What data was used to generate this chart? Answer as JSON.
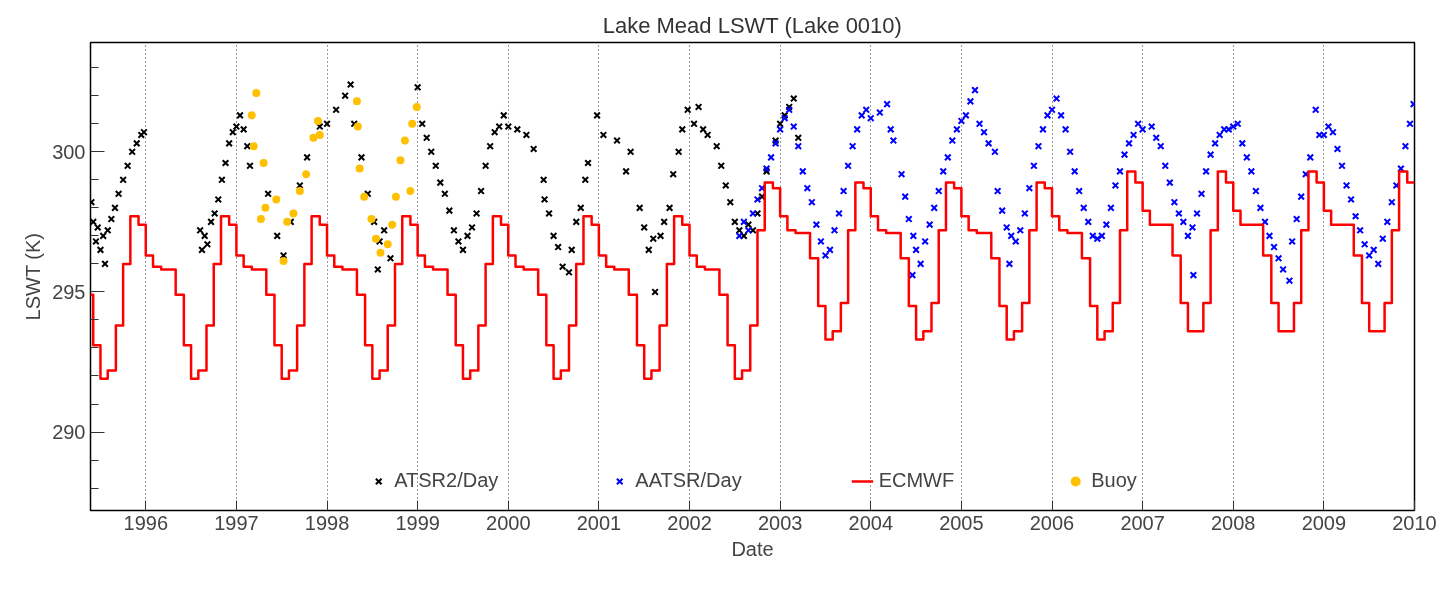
{
  "chart_data": {
    "type": "scatter",
    "title": "Lake Mead LSWT (Lake 0010)",
    "xlabel": "Date",
    "ylabel": "LSWT (K)",
    "xlim": [
      1995.39,
      2010.0
    ],
    "ylim": [
      287.2,
      303.9
    ],
    "xticks": [
      1996,
      1997,
      1998,
      1999,
      2000,
      2001,
      2002,
      2003,
      2004,
      2005,
      2006,
      2007,
      2008,
      2009,
      2010
    ],
    "yticks": [
      {
        "value": 288,
        "label": null
      },
      {
        "value": 289,
        "label": null
      },
      290,
      {
        "value": 291,
        "label": null
      },
      {
        "value": 292,
        "label": null
      },
      {
        "value": 293,
        "label": null
      },
      {
        "value": 294,
        "label": null
      },
      295,
      {
        "value": 296,
        "label": null
      },
      {
        "value": 297,
        "label": null
      },
      {
        "value": 298,
        "label": null
      },
      {
        "value": 299,
        "label": null
      },
      300,
      {
        "value": 301,
        "label": null
      },
      {
        "value": 302,
        "label": null
      },
      {
        "value": 303,
        "label": null
      }
    ],
    "grid": "x",
    "legend": "bottom",
    "series": [
      {
        "name": "ATSR2/Day",
        "type": "scatter",
        "marker": "cross",
        "color": "#000000",
        "x": [
          1995.4,
          1995.42,
          1995.45,
          1995.47,
          1995.5,
          1995.53,
          1995.55,
          1995.58,
          1995.62,
          1995.66,
          1995.7,
          1995.75,
          1995.8,
          1995.85,
          1995.9,
          1995.95,
          1995.98,
          1996.6,
          1996.62,
          1996.65,
          1996.68,
          1996.72,
          1996.76,
          1996.8,
          1996.84,
          1996.88,
          1996.92,
          1996.96,
          1997.0,
          1997.04,
          1997.08,
          1997.12,
          1997.15,
          1997.35,
          1997.45,
          1997.52,
          1997.6,
          1997.7,
          1997.78,
          1997.85,
          1997.92,
          1998.0,
          1998.1,
          1998.2,
          1998.26,
          1998.3,
          1998.38,
          1998.45,
          1998.52,
          1998.56,
          1998.58,
          1998.63,
          1998.7,
          1999.0,
          1999.05,
          1999.1,
          1999.15,
          1999.2,
          1999.25,
          1999.3,
          1999.35,
          1999.4,
          1999.45,
          1999.5,
          1999.55,
          1999.6,
          1999.65,
          1999.7,
          1999.75,
          1999.8,
          1999.85,
          1999.9,
          1999.95,
          2000.0,
          2000.1,
          2000.2,
          2000.28,
          2000.39,
          2000.4,
          2000.45,
          2000.5,
          2000.55,
          2000.6,
          2000.67,
          2000.7,
          2000.75,
          2000.8,
          2000.85,
          2000.88,
          2000.98,
          2001.05,
          2001.2,
          2001.3,
          2001.35,
          2001.45,
          2001.5,
          2001.55,
          2001.6,
          2001.62,
          2001.68,
          2001.72,
          2001.78,
          2001.82,
          2001.88,
          2001.92,
          2001.98,
          2002.05,
          2002.1,
          2002.15,
          2002.2,
          2002.3,
          2002.35,
          2002.4,
          2002.45,
          2002.5,
          2002.55,
          2002.6,
          2002.65,
          2002.7,
          2002.75,
          2002.8,
          2002.85,
          2002.9,
          2002.95,
          2003.0,
          2003.05,
          2003.1,
          2003.15,
          2003.2
        ],
        "values": [
          298.2,
          297.5,
          296.8,
          297.3,
          296.5,
          297.0,
          296.0,
          297.2,
          297.6,
          298.0,
          298.5,
          299.0,
          299.5,
          300.0,
          300.3,
          300.6,
          300.7,
          297.2,
          296.5,
          297.0,
          296.7,
          297.5,
          297.8,
          298.3,
          299.0,
          299.6,
          300.3,
          300.7,
          300.9,
          301.3,
          300.8,
          300.2,
          299.5,
          298.5,
          297.0,
          296.3,
          297.5,
          298.8,
          299.8,
          null,
          300.9,
          301.0,
          301.5,
          302.0,
          302.4,
          301.0,
          299.8,
          298.5,
          297.5,
          295.8,
          296.8,
          297.2,
          296.2,
          302.3,
          301.0,
          300.5,
          300.0,
          299.5,
          298.9,
          298.5,
          297.9,
          297.2,
          296.8,
          296.5,
          297.0,
          297.3,
          297.8,
          298.6,
          299.5,
          300.2,
          300.7,
          300.9,
          301.3,
          300.9,
          300.8,
          300.6,
          300.1,
          299.0,
          298.3,
          297.8,
          297.0,
          296.6,
          295.9,
          295.7,
          296.5,
          297.5,
          298.0,
          299.0,
          299.6,
          301.3,
          300.6,
          300.4,
          299.3,
          300.0,
          298.0,
          297.3,
          296.5,
          296.9,
          295.0,
          297.0,
          297.5,
          298.0,
          299.2,
          300.0,
          300.8,
          301.5,
          301.0,
          301.6,
          300.8,
          300.6,
          300.2,
          299.5,
          298.8,
          298.2,
          297.5,
          297.2,
          297.0,
          297.4,
          297.2,
          297.8,
          298.4,
          299.3,
          null,
          300.4,
          301.0,
          301.3,
          301.6,
          301.9,
          300.5
        ]
      },
      {
        "name": "AATSR/Day",
        "type": "scatter",
        "marker": "cross",
        "color": "#0000ff",
        "x": [
          2002.55,
          2002.6,
          2002.65,
          2002.7,
          2002.75,
          2002.8,
          2002.85,
          2002.9,
          2002.95,
          2003.0,
          2003.05,
          2003.1,
          2003.15,
          2003.2,
          2003.25,
          2003.3,
          2003.35,
          2003.4,
          2003.45,
          2003.5,
          2003.55,
          2003.6,
          2003.65,
          2003.7,
          2003.75,
          2003.8,
          2003.85,
          2003.9,
          2003.95,
          2004.0,
          2004.1,
          2004.18,
          2004.22,
          2004.25,
          2004.34,
          2004.38,
          2004.42,
          2004.46,
          2004.47,
          2004.5,
          2004.55,
          2004.6,
          2004.65,
          2004.7,
          2004.75,
          2004.8,
          2004.85,
          2004.9,
          2004.95,
          2005.0,
          2005.05,
          2005.1,
          2005.15,
          2005.2,
          2005.25,
          2005.3,
          2005.37,
          2005.4,
          2005.45,
          2005.5,
          2005.53,
          2005.55,
          2005.6,
          2005.65,
          2005.7,
          2005.75,
          2005.8,
          2005.85,
          2005.9,
          2005.95,
          2006.0,
          2006.05,
          2006.1,
          2006.15,
          2006.2,
          2006.25,
          2006.3,
          2006.35,
          2006.4,
          2006.45,
          2006.5,
          2006.55,
          2006.6,
          2006.65,
          2006.7,
          2006.75,
          2006.8,
          2006.85,
          2006.9,
          2006.95,
          2007.0,
          2007.1,
          2007.15,
          2007.2,
          2007.25,
          2007.3,
          2007.35,
          2007.4,
          2007.45,
          2007.5,
          2007.55,
          2007.56,
          2007.6,
          2007.65,
          2007.7,
          2007.75,
          2007.8,
          2007.85,
          2007.9,
          2007.95,
          2008.0,
          2008.05,
          2008.1,
          2008.15,
          2008.2,
          2008.25,
          2008.3,
          2008.35,
          2008.4,
          2008.45,
          2008.5,
          2008.55,
          2008.62,
          2008.65,
          2008.7,
          2008.75,
          2008.8,
          2008.85,
          2008.91,
          2008.95,
          2009.0,
          2009.05,
          2009.1,
          2009.15,
          2009.2,
          2009.25,
          2009.3,
          2009.35,
          2009.4,
          2009.45,
          2009.5,
          2009.55,
          2009.6,
          2009.65,
          2009.7,
          2009.75,
          2009.8,
          2009.85,
          2009.9,
          2009.95,
          2009.99
        ],
        "values": [
          297.0,
          297.5,
          297.2,
          297.8,
          298.3,
          298.7,
          299.4,
          299.8,
          300.3,
          300.8,
          301.2,
          301.5,
          300.9,
          300.2,
          299.3,
          298.7,
          298.2,
          297.4,
          296.8,
          296.3,
          296.5,
          297.2,
          297.8,
          298.6,
          299.5,
          300.2,
          300.8,
          301.3,
          301.5,
          301.2,
          301.4,
          301.7,
          300.8,
          300.4,
          299.2,
          298.4,
          297.6,
          295.6,
          297.0,
          296.5,
          296.0,
          296.8,
          297.4,
          298.0,
          298.6,
          299.3,
          299.8,
          300.4,
          300.8,
          301.1,
          301.3,
          301.8,
          302.2,
          301.0,
          300.7,
          300.3,
          300.0,
          298.6,
          297.9,
          297.3,
          296.0,
          297.0,
          296.8,
          297.2,
          297.8,
          298.7,
          299.5,
          300.2,
          300.8,
          301.3,
          301.5,
          301.9,
          301.3,
          300.8,
          300.0,
          299.3,
          298.6,
          298.0,
          297.5,
          297.0,
          296.9,
          297.0,
          297.4,
          298.0,
          298.8,
          299.3,
          299.9,
          300.3,
          300.6,
          301.0,
          300.8,
          300.9,
          300.5,
          300.2,
          299.5,
          298.9,
          298.2,
          297.8,
          297.5,
          297.0,
          297.3,
          295.6,
          297.8,
          298.5,
          299.3,
          299.9,
          300.3,
          300.6,
          300.8,
          300.8,
          300.9,
          301.0,
          300.3,
          299.8,
          299.3,
          298.6,
          298.0,
          297.5,
          297.0,
          296.6,
          296.2,
          295.8,
          295.4,
          296.8,
          297.6,
          298.4,
          299.2,
          299.8,
          301.5,
          300.6,
          300.6,
          300.9,
          300.7,
          300.1,
          299.5,
          298.8,
          298.3,
          297.7,
          297.2,
          296.7,
          296.3,
          296.5,
          296.0,
          296.9,
          297.5,
          298.2,
          298.8,
          299.4,
          300.2,
          301.0,
          301.7
        ]
      },
      {
        "name": "ECMWF",
        "type": "step",
        "marker": "none",
        "color": "#ff0000",
        "x": [
          1995.39,
          1995.42,
          1995.5,
          1995.58,
          1995.67,
          1995.75,
          1995.83,
          1995.92,
          1996,
          1996.08,
          1996.17,
          1996.25,
          1996.33,
          1996.42,
          1996.5,
          1996.58,
          1996.67,
          1996.75,
          1996.83,
          1996.92,
          1997,
          1997.08,
          1997.17,
          1997.25,
          1997.33,
          1997.42,
          1997.5,
          1997.58,
          1997.67,
          1997.75,
          1997.83,
          1997.92,
          1998,
          1998.08,
          1998.17,
          1998.25,
          1998.33,
          1998.42,
          1998.5,
          1998.58,
          1998.67,
          1998.75,
          1998.83,
          1998.92,
          1999,
          1999.08,
          1999.17,
          1999.25,
          1999.33,
          1999.42,
          1999.5,
          1999.58,
          1999.67,
          1999.75,
          1999.83,
          1999.92,
          2000,
          2000.08,
          2000.17,
          2000.25,
          2000.33,
          2000.42,
          2000.5,
          2000.58,
          2000.67,
          2000.75,
          2000.83,
          2000.92,
          2001,
          2001.08,
          2001.17,
          2001.25,
          2001.33,
          2001.42,
          2001.5,
          2001.58,
          2001.67,
          2001.75,
          2001.83,
          2001.92,
          2002,
          2002.08,
          2002.17,
          2002.25,
          2002.33,
          2002.42,
          2002.5,
          2002.58,
          2002.67,
          2002.75,
          2002.83,
          2002.92,
          2003,
          2003.08,
          2003.17,
          2003.25,
          2003.33,
          2003.42,
          2003.5,
          2003.58,
          2003.67,
          2003.75,
          2003.83,
          2003.92,
          2004,
          2004.08,
          2004.17,
          2004.25,
          2004.33,
          2004.42,
          2004.5,
          2004.58,
          2004.67,
          2004.75,
          2004.83,
          2004.92,
          2005,
          2005.08,
          2005.17,
          2005.25,
          2005.33,
          2005.42,
          2005.5,
          2005.58,
          2005.67,
          2005.75,
          2005.83,
          2005.92,
          2006,
          2006.08,
          2006.17,
          2006.25,
          2006.33,
          2006.42,
          2006.5,
          2006.58,
          2006.67,
          2006.75,
          2006.83,
          2006.92,
          2007,
          2007.08,
          2007.17,
          2007.25,
          2007.33,
          2007.42,
          2007.5,
          2007.58,
          2007.67,
          2007.75,
          2007.83,
          2007.92,
          2008,
          2008.08,
          2008.17,
          2008.25,
          2008.33,
          2008.42,
          2008.5,
          2008.58,
          2008.67,
          2008.75,
          2008.83,
          2008.92,
          2009,
          2009.08,
          2009.17,
          2009.25,
          2009.33,
          2009.42,
          2009.5,
          2009.58,
          2009.67,
          2009.75,
          2009.83,
          2009.92,
          2010
        ],
        "values": [
          294.9,
          293.1,
          291.9,
          292.2,
          293.8,
          296.0,
          297.7,
          297.4,
          296.3,
          295.9,
          295.8,
          295.8,
          294.9,
          293.1,
          291.9,
          292.2,
          293.8,
          296.0,
          297.7,
          297.4,
          296.3,
          295.9,
          295.8,
          295.8,
          294.9,
          293.1,
          291.9,
          292.2,
          293.8,
          296.0,
          297.7,
          297.4,
          296.3,
          295.9,
          295.8,
          295.8,
          294.9,
          293.1,
          291.9,
          292.2,
          293.8,
          296.0,
          297.7,
          297.4,
          296.3,
          295.9,
          295.8,
          295.8,
          294.9,
          293.1,
          291.9,
          292.2,
          293.8,
          296.0,
          297.7,
          297.4,
          296.3,
          295.9,
          295.8,
          295.8,
          294.9,
          293.1,
          291.9,
          292.2,
          293.8,
          296.0,
          297.7,
          297.4,
          296.3,
          295.9,
          295.8,
          295.8,
          294.9,
          293.1,
          291.9,
          292.2,
          293.8,
          296.0,
          297.7,
          297.4,
          296.3,
          295.9,
          295.8,
          295.8,
          294.9,
          293.1,
          291.9,
          292.2,
          293.8,
          297.2,
          298.9,
          298.7,
          297.7,
          297.2,
          297.1,
          297.1,
          296.2,
          294.5,
          293.3,
          293.6,
          294.6,
          297.2,
          298.9,
          298.7,
          297.7,
          297.2,
          297.1,
          297.1,
          296.2,
          294.5,
          293.3,
          293.6,
          294.6,
          297.2,
          298.9,
          298.7,
          297.7,
          297.2,
          297.1,
          297.1,
          296.2,
          294.5,
          293.3,
          293.6,
          294.6,
          297.2,
          298.9,
          298.7,
          297.7,
          297.2,
          297.1,
          297.1,
          296.2,
          294.5,
          293.3,
          293.6,
          294.6,
          297.2,
          299.3,
          298.9,
          297.9,
          297.4,
          297.4,
          297.4,
          296.3,
          294.6,
          293.6,
          293.6,
          294.6,
          297.2,
          299.3,
          298.9,
          297.9,
          297.4,
          297.4,
          297.4,
          296.3,
          294.6,
          293.6,
          293.6,
          294.6,
          297.2,
          299.3,
          298.9,
          297.9,
          297.4,
          297.4,
          297.4,
          296.3,
          294.6,
          293.6,
          293.6,
          294.6,
          297.2,
          299.3,
          298.9,
          298.9
        ]
      },
      {
        "name": "Buoy",
        "type": "scatter",
        "marker": "circle",
        "color": "#ffc000",
        "x": [
          1997.17,
          1997.19,
          1997.22,
          1997.27,
          1997.3,
          1997.32,
          1997.44,
          1997.52,
          1997.56,
          1997.63,
          1997.7,
          1997.77,
          1997.85,
          1997.9,
          1997.92,
          1998.33,
          1998.34,
          1998.36,
          1998.41,
          1998.49,
          1998.54,
          1998.59,
          1998.67,
          1998.72,
          1998.76,
          1998.81,
          1998.86,
          1998.92,
          1998.94,
          1998.99
        ],
        "values": [
          301.3,
          300.2,
          302.1,
          297.6,
          299.6,
          298.0,
          298.3,
          296.1,
          297.5,
          297.8,
          298.6,
          299.2,
          300.5,
          301.1,
          300.6,
          301.8,
          300.9,
          299.4,
          298.4,
          297.6,
          296.9,
          296.4,
          296.7,
          297.4,
          298.4,
          299.7,
          300.4,
          298.6,
          301.0,
          301.6
        ]
      }
    ]
  }
}
